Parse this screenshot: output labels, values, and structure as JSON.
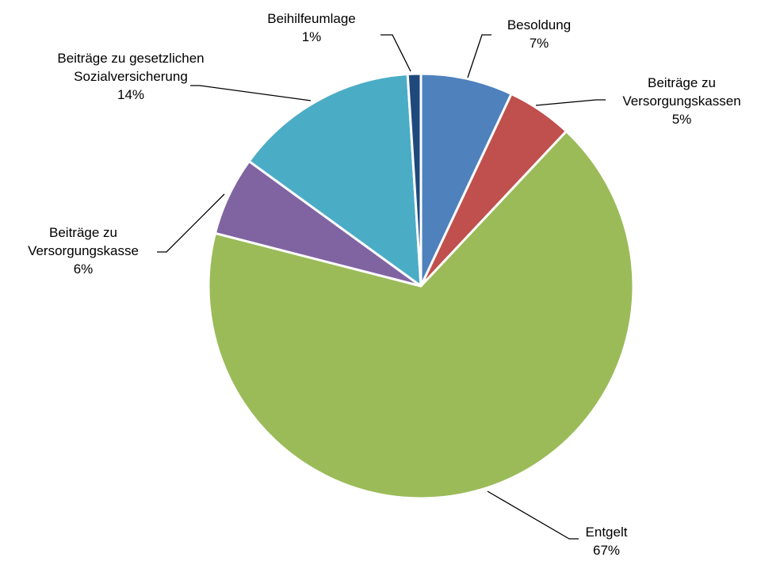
{
  "chart_data": {
    "type": "pie",
    "categories": [
      "Besoldung",
      "Beiträge zu Versorgungskassen",
      "Entgelt",
      "Beiträge zu Versorgungskasse",
      "Beiträge zu gesetzlichen Sozialversicherung",
      "Beihilfeumlage"
    ],
    "values": [
      7,
      5,
      67,
      6,
      14,
      1
    ],
    "value_labels": [
      "7%",
      "5%",
      "67%",
      "6%",
      "14%",
      "1%"
    ],
    "colors": [
      "#4f81bd",
      "#c0504d",
      "#9bbb59",
      "#8064a2",
      "#4bacc6",
      "#1f497d"
    ]
  }
}
